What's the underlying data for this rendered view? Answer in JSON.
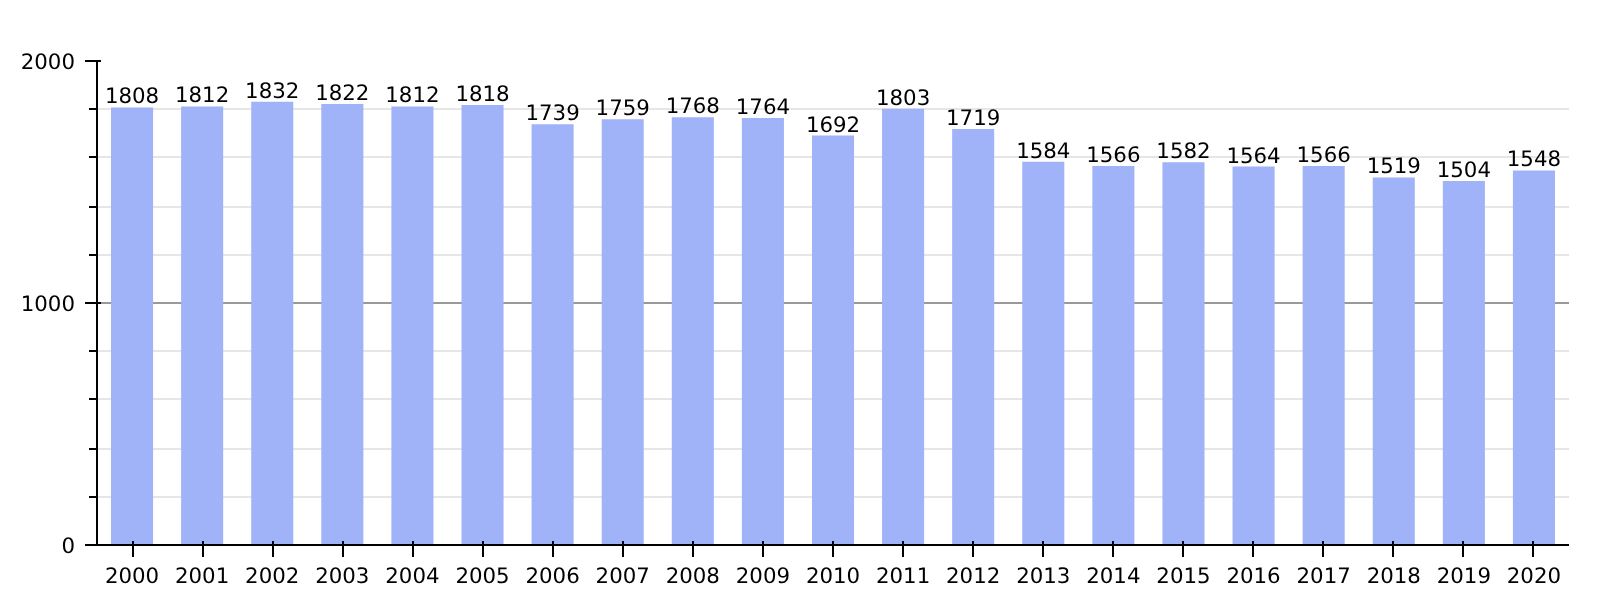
{
  "chart_data": {
    "type": "bar",
    "categories": [
      "2000",
      "2001",
      "2002",
      "2003",
      "2004",
      "2005",
      "2006",
      "2007",
      "2008",
      "2009",
      "2010",
      "2011",
      "2012",
      "2013",
      "2014",
      "2015",
      "2016",
      "2017",
      "2018",
      "2019",
      "2020"
    ],
    "values": [
      1808,
      1812,
      1832,
      1822,
      1812,
      1818,
      1739,
      1759,
      1768,
      1764,
      1692,
      1803,
      1719,
      1584,
      1566,
      1582,
      1564,
      1566,
      1519,
      1504,
      1548
    ],
    "color": "#a0b2f8",
    "ylim": [
      0,
      2000
    ],
    "yticks": [
      0,
      1000,
      2000
    ],
    "grid": "y",
    "data_labels": true
  }
}
